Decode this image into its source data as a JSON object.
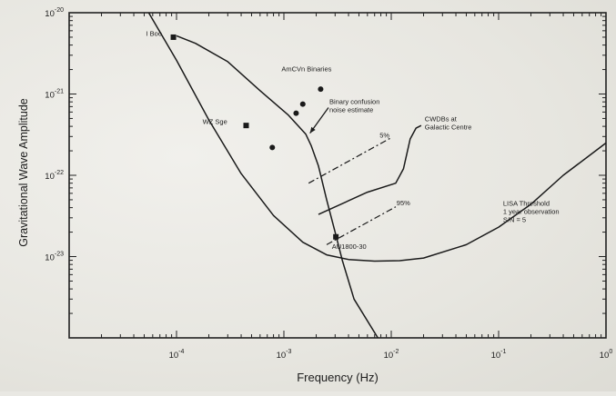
{
  "chart_data": {
    "type": "line",
    "xscale": "log",
    "yscale": "log",
    "xlim": [
      1e-05,
      1
    ],
    "ylim": [
      1e-24,
      1e-20
    ],
    "xlabel": "Frequency  (Hz)",
    "ylabel": "Gravitational Wave Amplitude",
    "x_ticks": [
      {
        "value": 0.0001,
        "base": "10",
        "exp": "-4"
      },
      {
        "value": 0.001,
        "base": "10",
        "exp": "-3"
      },
      {
        "value": 0.01,
        "base": "10",
        "exp": "-2"
      },
      {
        "value": 0.1,
        "base": "10",
        "exp": "-1"
      },
      {
        "value": 1,
        "base": "10",
        "exp": "0"
      }
    ],
    "y_ticks": [
      {
        "value": 1e-20,
        "base": "10",
        "exp": "-20"
      },
      {
        "value": 1e-21,
        "base": "10",
        "exp": "-21"
      },
      {
        "value": 1e-22,
        "base": "10",
        "exp": "-22"
      },
      {
        "value": 1e-23,
        "base": "10",
        "exp": "-23"
      }
    ],
    "series": [
      {
        "name": "LISA Threshold",
        "style": "solid",
        "points": [
          [
            5.5e-05,
            1e-20
          ],
          [
            0.0001,
            2.6e-21
          ],
          [
            0.0002,
            4.8e-22
          ],
          [
            0.0004,
            1.05e-22
          ],
          [
            0.0008,
            3.2e-23
          ],
          [
            0.0015,
            1.5e-23
          ],
          [
            0.0025,
            1.05e-23
          ],
          [
            0.004,
            9.2e-24
          ],
          [
            0.007,
            8.8e-24
          ],
          [
            0.012,
            8.9e-24
          ],
          [
            0.02,
            9.6e-24
          ],
          [
            0.05,
            1.4e-23
          ],
          [
            0.1,
            2.3e-23
          ],
          [
            0.2,
            4.4e-23
          ],
          [
            0.4,
            1e-22
          ],
          [
            1,
            2.5e-22
          ]
        ]
      },
      {
        "name": "Binary confusion noise estimate",
        "style": "solid",
        "points": [
          [
            0.0001,
            5.2e-21
          ],
          [
            0.00015,
            4.2e-21
          ],
          [
            0.0003,
            2.5e-21
          ],
          [
            0.0006,
            1.1e-21
          ],
          [
            0.0011,
            5.5e-22
          ],
          [
            0.0016,
            3.2e-22
          ],
          [
            0.0018,
            2.3e-22
          ],
          [
            0.0021,
            1.3e-22
          ],
          [
            0.0025,
            5e-23
          ],
          [
            0.003,
            2e-23
          ],
          [
            0.0035,
            9e-24
          ],
          [
            0.0045,
            3e-24
          ],
          [
            0.0075,
            1e-24
          ]
        ]
      },
      {
        "name": "CWDBs at Galactic Centre",
        "style": "solid",
        "points": [
          [
            0.0021,
            3.3e-23
          ],
          [
            0.006,
            6.2e-23
          ],
          [
            0.011,
            8e-23
          ],
          [
            0.013,
            1.2e-22
          ],
          [
            0.015,
            2.8e-22
          ],
          [
            0.017,
            3.8e-22
          ],
          [
            0.019,
            4.1e-22
          ]
        ]
      },
      {
        "name": "5%",
        "style": "dashdot",
        "points": [
          [
            0.0017,
            8e-23
          ],
          [
            0.01,
            2.9e-22
          ]
        ]
      },
      {
        "name": "95%",
        "style": "dashdot",
        "points": [
          [
            0.0025,
            1.4e-23
          ],
          [
            0.011,
            4.1e-23
          ]
        ]
      }
    ],
    "markers": [
      {
        "label": "I Boo",
        "shape": "square",
        "x": 9.35e-05,
        "y": 5e-21
      },
      {
        "label": "WZ Sge",
        "shape": "square",
        "x": 0.000445,
        "y": 4.1e-22
      },
      {
        "label": "AU1800-30",
        "shape": "square",
        "x": 0.00305,
        "y": 1.75e-23
      },
      {
        "label": "AmCVn Binaries",
        "shape": "dot",
        "x": 0.0022,
        "y": 1.15e-21
      },
      {
        "label": "",
        "shape": "dot",
        "x": 0.0015,
        "y": 7.5e-22
      },
      {
        "label": "",
        "shape": "dot",
        "x": 0.0013,
        "y": 5.8e-22
      },
      {
        "label": "",
        "shape": "dot",
        "x": 0.00078,
        "y": 2.2e-22
      }
    ],
    "annotations": [
      {
        "id": "iboo",
        "text": [
          "I Boo"
        ],
        "fx": 5.2e-05,
        "fy": 5.2e-21,
        "anchor": "start"
      },
      {
        "id": "wzsge",
        "text": [
          "WZ Sge"
        ],
        "fx": 0.000175,
        "fy": 4.3e-22,
        "anchor": "start"
      },
      {
        "id": "amcvn",
        "text": [
          "AmCVn Binaries"
        ],
        "fx": 0.00095,
        "fy": 1.9e-21,
        "anchor": "start"
      },
      {
        "id": "confusion",
        "text": [
          "Binary confusion",
          "noise estimate"
        ],
        "fx": 0.00265,
        "fy": 7.5e-22,
        "anchor": "start"
      },
      {
        "id": "cwdb",
        "text": [
          "CWDBs at",
          "Galactic Centre"
        ],
        "fx": 0.0205,
        "fy": 4.6e-22,
        "anchor": "start"
      },
      {
        "id": "p5",
        "text": [
          "5%"
        ],
        "fx": 0.0078,
        "fy": 2.9e-22,
        "anchor": "start"
      },
      {
        "id": "p95",
        "text": [
          "95%"
        ],
        "fx": 0.0112,
        "fy": 4.3e-23,
        "anchor": "start"
      },
      {
        "id": "au1800",
        "text": [
          "AU1800-30"
        ],
        "fx": 0.0028,
        "fy": 1.25e-23,
        "anchor": "start"
      },
      {
        "id": "lisa",
        "text": [
          "LISA Threshold",
          "1 year observation",
          "S/N = 5"
        ],
        "fx": 0.11,
        "fy": 4.2e-23,
        "anchor": "start"
      }
    ],
    "arrow": {
      "from": [
        0.0026,
        6.8e-22
      ],
      "to": [
        0.00175,
        3.3e-22
      ]
    },
    "grid": false,
    "legend": "none"
  }
}
